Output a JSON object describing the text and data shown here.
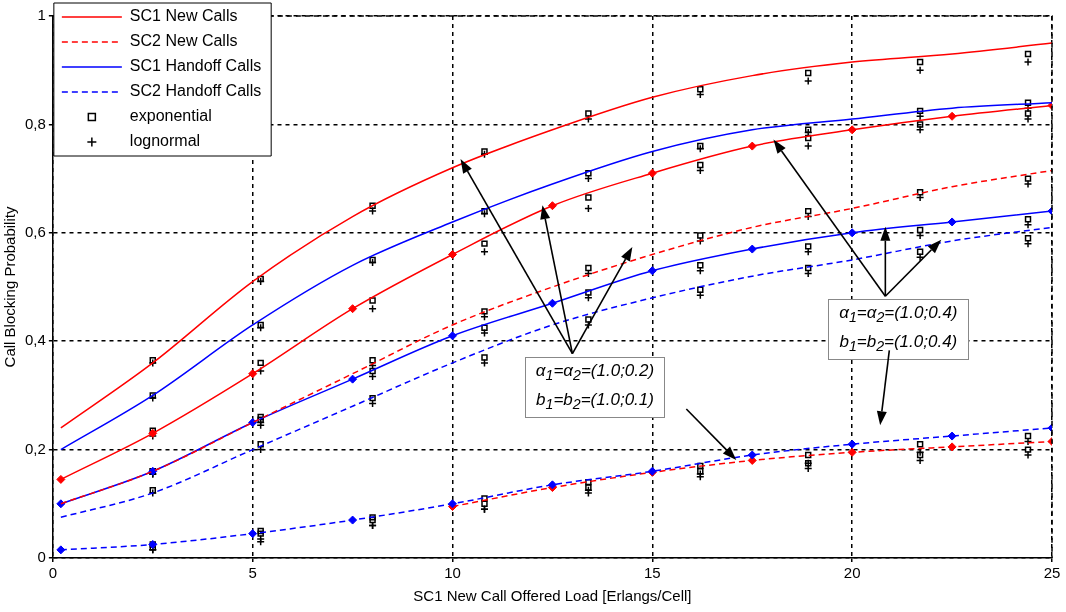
{
  "chart_data": {
    "type": "line",
    "xlabel": "SC1 New Call Offered Load [Erlangs/Cell]",
    "ylabel": "Call Blocking Probability",
    "xlim": [
      0,
      25
    ],
    "xticks": [
      0,
      5,
      10,
      15,
      20,
      25
    ],
    "ylim": [
      0,
      1
    ],
    "yticks": [
      0,
      {
        "value": 0.2,
        "label": "0,2"
      },
      {
        "value": 0.4,
        "label": "0,4"
      },
      {
        "value": 0.6,
        "label": "0,6"
      },
      {
        "value": 0.8,
        "label": "0,8"
      },
      1
    ],
    "grid": true,
    "legend": "top left",
    "x": [
      0.2,
      2.5,
      5,
      7.5,
      10,
      12.5,
      15,
      17.5,
      20,
      22.5,
      25
    ],
    "series": [
      {
        "name": "SC1 New Calls",
        "color": "#ff0000",
        "line_style": "solid",
        "marker": "none",
        "values": [
          0.24,
          0.36,
          0.51,
          0.63,
          0.72,
          0.79,
          0.85,
          0.89,
          0.915,
          0.93,
          0.95
        ]
      },
      {
        "name": "SC2 New Calls",
        "color": "#ff0000",
        "line_style": "dashed",
        "marker": "none",
        "values": [
          0.1,
          0.16,
          0.25,
          0.34,
          0.43,
          0.5,
          0.56,
          0.61,
          0.645,
          0.685,
          0.715
        ]
      },
      {
        "name": "SC1 Handoff Calls",
        "color": "#0000ff",
        "line_style": "solid",
        "marker": "diamond",
        "values": [
          0.1,
          0.16,
          0.25,
          0.33,
          0.41,
          0.47,
          0.53,
          0.57,
          0.6,
          0.62,
          0.64
        ]
      },
      {
        "name": "SC2 Handoff Calls",
        "color": "#0000ff",
        "line_style": "dashed",
        "marker": "diamond",
        "values": [
          0.015,
          0.025,
          0.045,
          0.07,
          0.1,
          0.135,
          0.16,
          0.19,
          0.21,
          0.225,
          0.24
        ]
      },
      {
        "color": "#0000ff",
        "line_style": "solid",
        "marker": "none",
        "values": [
          0.2,
          0.3,
          0.43,
          0.54,
          0.62,
          0.69,
          0.75,
          0.79,
          0.81,
          0.83,
          0.84
        ]
      },
      {
        "color": "#ff0000",
        "line_style": "solid",
        "marker": "diamond",
        "values": [
          0.145,
          0.23,
          0.34,
          0.46,
          0.56,
          0.65,
          0.71,
          0.76,
          0.79,
          0.815,
          0.835
        ]
      },
      {
        "color": "#0000ff",
        "line_style": "dashed",
        "marker": "none",
        "values": [
          0.075,
          0.12,
          0.2,
          0.28,
          0.36,
          0.43,
          0.48,
          0.52,
          0.55,
          0.585,
          0.61
        ]
      },
      {
        "color": "#ff0000",
        "line_style": "dashed",
        "marker": "diamond",
        "values": [
          null,
          null,
          null,
          null,
          0.095,
          0.13,
          0.158,
          0.18,
          0.195,
          0.205,
          0.215
        ]
      },
      {
        "name": "exponential",
        "type": "scatter",
        "color": "#000000",
        "marker": "square",
        "x": [
          2.5,
          5.2,
          8,
          10.8,
          13.4,
          16.2,
          18.9,
          21.7,
          24.4,
          2.5,
          5.2,
          8,
          10.8,
          13.4,
          16.2,
          18.9,
          21.7,
          24.4,
          2.5,
          5.2,
          8,
          10.8,
          13.4,
          16.2,
          18.9,
          21.7,
          24.4,
          2.5,
          5.2,
          8,
          10.8,
          13.4,
          16.2,
          18.9,
          21.7,
          24.4,
          2.5,
          5.2,
          8,
          10.8,
          13.4,
          16.2,
          18.9,
          21.7,
          24.4,
          2.5,
          5.2,
          8,
          10.8,
          13.4,
          16.2,
          18.9,
          21.7,
          24.4,
          2.5,
          5.2,
          8,
          10.8,
          13.4,
          16.2,
          18.9,
          21.7,
          24.4,
          2.5,
          5.2,
          8,
          10.8,
          13.4,
          16.2,
          18.9,
          21.7,
          24.4
        ],
        "values": [
          0.365,
          0.515,
          0.65,
          0.75,
          0.82,
          0.865,
          0.895,
          0.915,
          0.93,
          0.3,
          0.43,
          0.55,
          0.64,
          0.71,
          0.76,
          0.79,
          0.825,
          0.84,
          0.235,
          0.36,
          0.475,
          0.58,
          0.665,
          0.725,
          0.775,
          0.8,
          0.82,
          0.16,
          0.26,
          0.365,
          0.455,
          0.535,
          0.595,
          0.64,
          0.675,
          0.7,
          0.16,
          0.255,
          0.345,
          0.425,
          0.49,
          0.54,
          0.575,
          0.605,
          0.625,
          0.125,
          0.21,
          0.295,
          0.37,
          0.44,
          0.495,
          0.535,
          0.565,
          0.59,
          0.025,
          0.05,
          0.075,
          0.11,
          0.14,
          0.17,
          0.19,
          0.21,
          0.225,
          0.02,
          0.045,
          0.07,
          0.1,
          0.13,
          0.16,
          0.175,
          0.19,
          0.2
        ]
      },
      {
        "name": "lognormal",
        "type": "scatter",
        "color": "#000000",
        "marker": "cross",
        "x": [
          2.5,
          5.2,
          8,
          10.8,
          13.4,
          16.2,
          18.9,
          21.7,
          24.4,
          2.5,
          5.2,
          8,
          10.8,
          13.4,
          16.2,
          18.9,
          21.7,
          24.4,
          2.5,
          5.2,
          8,
          10.8,
          13.4,
          16.2,
          18.9,
          21.7,
          24.4,
          2.5,
          5.2,
          8,
          10.8,
          13.4,
          16.2,
          18.9,
          21.7,
          24.4,
          2.5,
          5.2,
          8,
          10.8,
          13.4,
          16.2,
          18.9,
          21.7,
          24.4,
          2.5,
          5.2,
          8,
          10.8,
          13.4,
          16.2,
          18.9,
          21.7,
          24.4,
          2.5,
          5.2,
          8,
          10.8,
          13.4,
          16.2,
          18.9,
          21.7,
          24.4,
          2.5,
          5.2,
          8,
          10.8,
          13.4,
          16.2,
          18.9,
          21.7,
          24.4
        ],
        "values": [
          0.36,
          0.51,
          0.64,
          0.745,
          0.81,
          0.855,
          0.88,
          0.9,
          0.915,
          0.295,
          0.425,
          0.545,
          0.635,
          0.7,
          0.755,
          0.785,
          0.815,
          0.83,
          0.225,
          0.345,
          0.46,
          0.565,
          0.645,
          0.715,
          0.76,
          0.79,
          0.81,
          0.155,
          0.25,
          0.355,
          0.445,
          0.525,
          0.585,
          0.63,
          0.665,
          0.69,
          0.155,
          0.245,
          0.335,
          0.415,
          0.48,
          0.53,
          0.565,
          0.595,
          0.615,
          0.12,
          0.2,
          0.285,
          0.36,
          0.43,
          0.485,
          0.525,
          0.555,
          0.58,
          0.015,
          0.03,
          0.06,
          0.09,
          0.125,
          0.155,
          0.175,
          0.195,
          0.215,
          0.015,
          0.035,
          0.06,
          0.09,
          0.12,
          0.15,
          0.165,
          0.18,
          0.19
        ]
      }
    ],
    "annotations": [
      "α$_{1}$=α$_{2}$=(1.0;0.2)\nb$_{1}$=b$_{2}$=(1.0;0.1)",
      "α$_{1}$=α$_{2}$=(1.0;0.4)\nb$_{1}$=b$_{2}$=(1.0;0.4)"
    ]
  }
}
